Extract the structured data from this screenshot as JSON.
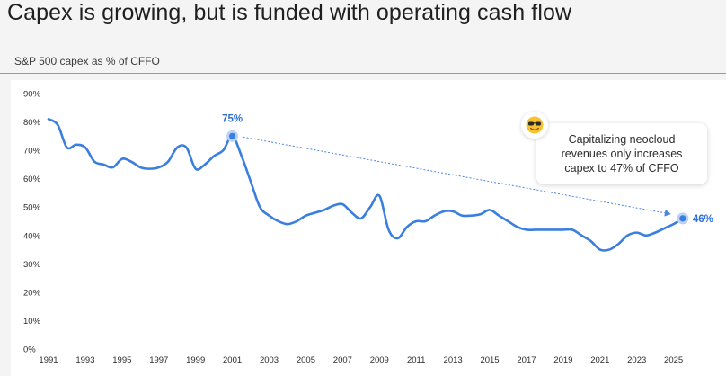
{
  "header": {
    "title": "Capex is growing, but is funded with operating cash flow",
    "subtitle": "S&P 500 capex as % of CFFO"
  },
  "callout": {
    "text": "Capitalizing neocloud revenues only increases capex to 47% of CFFO",
    "icon": "sunglasses-emoji-icon"
  },
  "colors": {
    "line": "#3a7ee0",
    "label": "#2f6fd6",
    "trend": "#4a86e0"
  },
  "chart_data": {
    "type": "line",
    "title": "",
    "xlabel": "",
    "ylabel": "",
    "xlim": [
      1991,
      2025.8
    ],
    "ylim": [
      0,
      90
    ],
    "x_ticks": [
      "1991",
      "1993",
      "1995",
      "1997",
      "1999",
      "2001",
      "2003",
      "2005",
      "2007",
      "2009",
      "2011",
      "2013",
      "2015",
      "2017",
      "2019",
      "2021",
      "2023",
      "2025"
    ],
    "y_ticks": [
      "0%",
      "10%",
      "20%",
      "30%",
      "40%",
      "50%",
      "60%",
      "70%",
      "80%",
      "90%"
    ],
    "grid": false,
    "series": [
      {
        "x": [
          1991,
          1991.5,
          1992,
          1992.5,
          1993,
          1993.5,
          1994,
          1994.5,
          1995,
          1995.5,
          1996,
          1996.5,
          1997,
          1997.5,
          1998,
          1998.5,
          1999,
          1999.5,
          2000,
          2000.5,
          2001,
          2001.5,
          2002,
          2002.5,
          2003,
          2003.5,
          2004,
          2004.5,
          2005,
          2005.5,
          2006,
          2006.5,
          2007,
          2007.5,
          2008,
          2008.5,
          2009,
          2009.5,
          2010,
          2010.5,
          2011,
          2011.5,
          2012,
          2012.5,
          2013,
          2013.5,
          2014,
          2014.5,
          2015,
          2015.5,
          2016,
          2016.5,
          2017,
          2017.5,
          2018,
          2018.5,
          2019,
          2019.5,
          2020,
          2020.5,
          2021,
          2021.5,
          2022,
          2022.5,
          2023,
          2023.5,
          2024,
          2024.5,
          2025,
          2025.5
        ],
        "values": [
          81,
          79,
          71,
          72,
          71,
          66,
          65,
          64,
          67,
          66,
          64,
          63.5,
          64,
          66,
          71,
          71,
          63.5,
          65,
          68,
          70,
          75,
          68,
          59,
          50,
          47,
          45,
          44,
          45,
          47,
          48,
          49,
          50.5,
          51,
          48,
          46,
          50,
          54,
          42,
          39,
          43,
          45,
          45,
          47,
          48.5,
          48.5,
          47,
          47,
          47.5,
          49,
          47,
          45,
          43,
          42,
          42,
          42,
          42,
          42,
          42,
          40,
          38,
          35,
          35,
          37,
          40,
          41,
          40,
          41,
          42.5,
          44,
          46
        ]
      }
    ],
    "annotations": [
      {
        "x": 2001,
        "y": 75,
        "text": "75%"
      },
      {
        "x": 2025.5,
        "y": 46,
        "text": "46%"
      }
    ]
  }
}
